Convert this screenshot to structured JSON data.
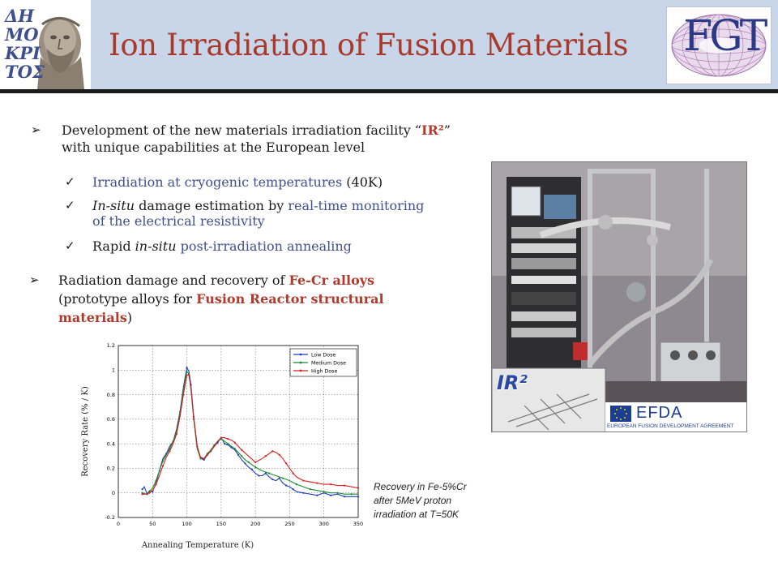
{
  "header": {
    "title": "Ion Irradiation of Fusion Materials",
    "left_logo_text": [
      "ΔΗ",
      "ΜΟ",
      "ΚΡΙ",
      "ΤΟΣ"
    ],
    "right_logo_text": "FGT"
  },
  "bullets": {
    "b1": {
      "line1_pre": "Development of the new materials irradiation facility “",
      "line1_em": "IR²",
      "line1_post": "”",
      "line2": "with unique capabilities at the European level"
    },
    "sub": [
      {
        "parts": [
          {
            "t": "Irradiation at cryogenic temperatures ",
            "c": "blue"
          },
          {
            "t": "(40K)",
            "c": ""
          }
        ]
      },
      {
        "parts": [
          {
            "t": "In-situ",
            "c": "em"
          },
          {
            "t": " damage estimation by ",
            "c": ""
          },
          {
            "t": "real-time monitoring",
            "c": "blue"
          }
        ]
      },
      {
        "parts": [
          {
            "t": "of the electrical resistivity",
            "c": "blue"
          }
        ]
      },
      {
        "parts": [
          {
            "t": "Rapid ",
            "c": ""
          },
          {
            "t": "in-situ",
            "c": "em"
          },
          {
            "t": " ",
            "c": ""
          },
          {
            "t": "post-irradiation annealing",
            "c": "blue"
          }
        ]
      }
    ],
    "b2": {
      "line1_pre": "Radiation damage and recovery of ",
      "line1_red": "Fe-Cr alloys",
      "line2_pre": "(prototype alloys for ",
      "line2_red": "Fusion Reactor structural",
      "line3_red": "materials",
      "line3_post": ")"
    }
  },
  "caption": [
    "Recovery in Fe-5%Cr",
    "after 5MeV proton",
    "irradiation at T=50K"
  ],
  "photo": {
    "ir2_label": "IR²",
    "efda_label": "EFDA",
    "efda_sub": "EUROPEAN FUSION DEVELOPMENT AGREEMENT"
  },
  "chart_data": {
    "type": "line",
    "xlabel": "Annealing Temperature (K)",
    "ylabel": "Recovery Rate (% / K)",
    "xlim": [
      0,
      350
    ],
    "ylim": [
      -0.2,
      1.2
    ],
    "xticks": [
      0,
      50,
      100,
      150,
      200,
      250,
      300,
      350
    ],
    "yticks": [
      -0.2,
      0,
      0.2,
      0.4,
      0.6,
      0.8,
      1,
      1.2
    ],
    "grid": true,
    "legend_position": "top-right",
    "series": [
      {
        "name": "Low Dose",
        "color": "#1f3fbf",
        "x": [
          35,
          38,
          42,
          46,
          50,
          55,
          60,
          65,
          70,
          75,
          80,
          85,
          90,
          95,
          100,
          103,
          106,
          110,
          115,
          120,
          125,
          130,
          135,
          140,
          145,
          150,
          155,
          160,
          165,
          170,
          175,
          180,
          185,
          190,
          195,
          200,
          205,
          210,
          215,
          220,
          225,
          230,
          235,
          240,
          245,
          250,
          255,
          260,
          270,
          280,
          290,
          300,
          310,
          320,
          330,
          340,
          350
        ],
        "y": [
          0.03,
          0.05,
          -0.01,
          0.02,
          0.01,
          0.08,
          0.18,
          0.28,
          0.32,
          0.38,
          0.42,
          0.52,
          0.66,
          0.86,
          1.02,
          0.99,
          0.88,
          0.62,
          0.38,
          0.28,
          0.27,
          0.31,
          0.34,
          0.38,
          0.41,
          0.45,
          0.4,
          0.39,
          0.37,
          0.35,
          0.31,
          0.27,
          0.24,
          0.21,
          0.19,
          0.16,
          0.14,
          0.14,
          0.16,
          0.13,
          0.11,
          0.1,
          0.12,
          0.08,
          0.06,
          0.05,
          0.03,
          0.01,
          0.0,
          -0.01,
          -0.02,
          0.0,
          -0.02,
          -0.01,
          -0.03,
          -0.03,
          -0.03
        ]
      },
      {
        "name": "Medium Dose",
        "color": "#1a8a2a",
        "x": [
          35,
          40,
          45,
          50,
          55,
          60,
          65,
          70,
          75,
          80,
          85,
          90,
          95,
          100,
          103,
          106,
          110,
          115,
          120,
          125,
          130,
          135,
          140,
          145,
          150,
          155,
          160,
          165,
          170,
          175,
          180,
          185,
          190,
          195,
          200,
          210,
          220,
          230,
          240,
          250,
          260,
          270,
          280,
          290,
          300,
          310,
          320,
          330,
          340,
          350
        ],
        "y": [
          0.0,
          -0.01,
          0.01,
          0.04,
          0.1,
          0.18,
          0.26,
          0.31,
          0.36,
          0.42,
          0.5,
          0.64,
          0.84,
          0.99,
          0.97,
          0.85,
          0.6,
          0.36,
          0.28,
          0.28,
          0.32,
          0.35,
          0.39,
          0.42,
          0.44,
          0.42,
          0.4,
          0.38,
          0.36,
          0.33,
          0.3,
          0.27,
          0.25,
          0.23,
          0.21,
          0.18,
          0.16,
          0.14,
          0.12,
          0.1,
          0.07,
          0.05,
          0.03,
          0.02,
          0.01,
          0.0,
          0.0,
          -0.01,
          -0.01,
          -0.01
        ]
      },
      {
        "name": "High Dose",
        "color": "#d42020",
        "x": [
          35,
          40,
          45,
          50,
          55,
          60,
          65,
          70,
          75,
          80,
          85,
          90,
          95,
          100,
          103,
          106,
          110,
          115,
          120,
          125,
          130,
          135,
          140,
          145,
          150,
          155,
          160,
          165,
          170,
          175,
          180,
          190,
          200,
          210,
          215,
          220,
          225,
          230,
          235,
          240,
          245,
          250,
          255,
          260,
          270,
          280,
          290,
          300,
          310,
          320,
          330,
          340,
          350
        ],
        "y": [
          -0.01,
          -0.01,
          0.0,
          0.02,
          0.07,
          0.14,
          0.22,
          0.29,
          0.34,
          0.4,
          0.48,
          0.62,
          0.8,
          0.96,
          0.96,
          0.85,
          0.62,
          0.38,
          0.29,
          0.28,
          0.31,
          0.34,
          0.38,
          0.42,
          0.45,
          0.45,
          0.44,
          0.43,
          0.41,
          0.38,
          0.35,
          0.3,
          0.25,
          0.28,
          0.3,
          0.32,
          0.34,
          0.33,
          0.31,
          0.28,
          0.24,
          0.2,
          0.16,
          0.13,
          0.1,
          0.09,
          0.08,
          0.07,
          0.07,
          0.06,
          0.06,
          0.05,
          0.04
        ]
      }
    ]
  }
}
